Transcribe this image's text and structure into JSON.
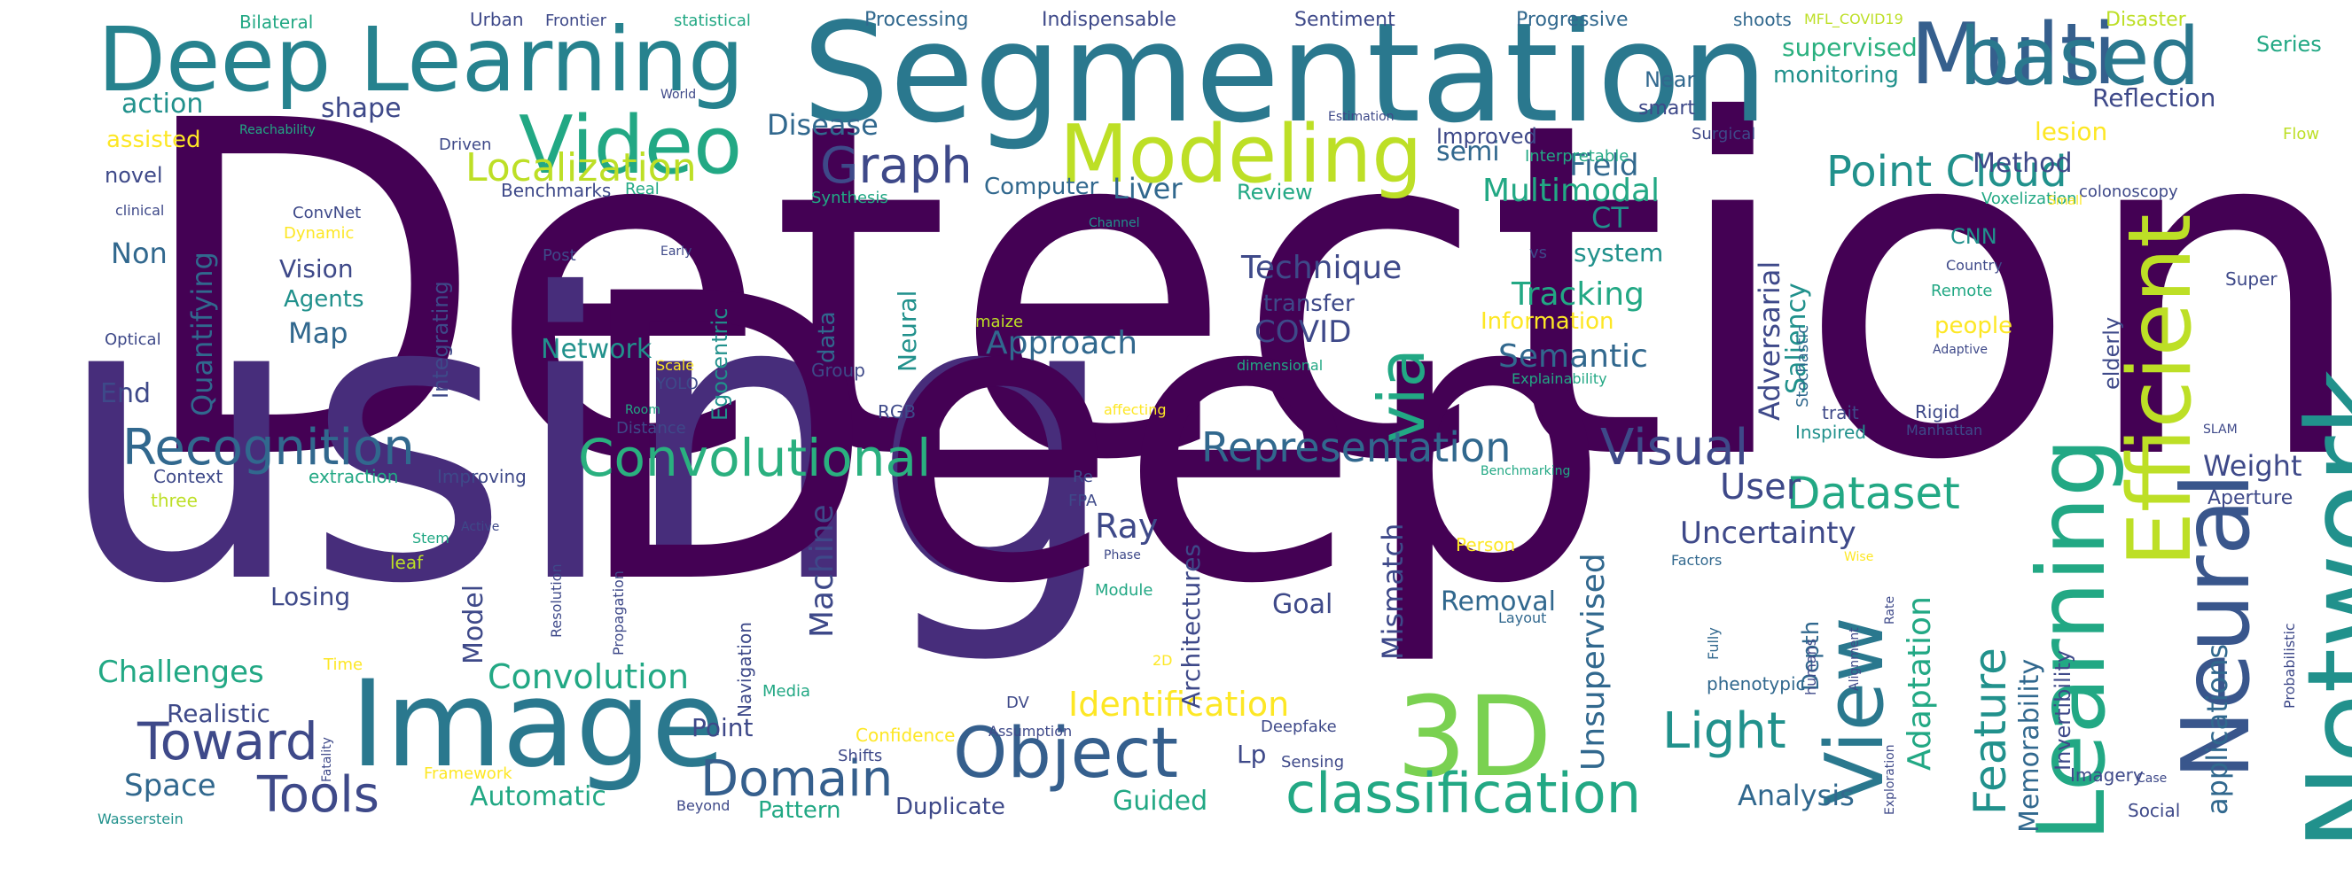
{
  "palette": {
    "dark_purple": "#440154",
    "purple": "#482475",
    "indigo": "#414487",
    "blue": "#355f8d",
    "steel": "#2a788e",
    "teal": "#21918c",
    "sea": "#22a884",
    "green": "#44bf70",
    "lime": "#7ad151",
    "yellowgreen": "#bddf26",
    "yellow": "#fde725"
  },
  "words": [
    "Detection",
    "using",
    "Deep",
    "Segmentation",
    "Deep Learning",
    "Image",
    "Network",
    "Neural",
    "3D",
    "Multi",
    "based",
    "Modeling",
    "Learning",
    "Video",
    "Efficient",
    "View",
    "Object",
    "classification",
    "Convolutional",
    "Recognition",
    "via",
    "Toward",
    "Domain",
    "Tools",
    "Representation",
    "Visual",
    "Light",
    "Dataset",
    "Graph",
    "Point Cloud",
    "Feature",
    "Localization",
    "Adaptation",
    "Identification",
    "Convolution",
    "Unsupervised",
    "User",
    "Tracking",
    "Ray",
    "Technique",
    "Multimodal",
    "Semantic",
    "Uncertainty",
    "Approach",
    "Mismatch",
    "Machine",
    "applications",
    "Challenges",
    "Space",
    "Field",
    "COVID",
    "Weight",
    "Quantifying",
    "Adversarial",
    "Analysis",
    "Liver",
    "CT",
    "Method",
    "Disease",
    "Automatic",
    "Guided",
    "Pattern",
    "Duplicate",
    "Map",
    "Losing",
    "Point",
    "Model",
    "Goal",
    "Removal",
    "Non",
    "End",
    "Vision",
    "Agents",
    "action",
    "shape",
    "Memorability",
    "Saliency",
    "Depth",
    "Invertibility",
    "Realistic",
    "Architectures",
    "Lp",
    "system",
    "semi",
    "supervised",
    "monitoring",
    "Improved",
    "Computer",
    "Review",
    "lesion",
    "Reflection",
    "CNN",
    "people",
    "elderly",
    "Integrating",
    "Egocentric",
    "data",
    "Neural",
    "transfer",
    "Information",
    "Network",
    "Navigation",
    "Series",
    "Near",
    "smart",
    "assisted",
    "novel",
    "Aperture",
    "Sensing",
    "Deepfake",
    "phenotypic",
    "Imagery",
    "Social",
    "Probabilistic",
    "Stochastic",
    "Super",
    "Remote",
    "Country",
    "Adaptive",
    "Rigid",
    "Manhattan",
    "Inspired",
    "trait",
    "Explainability",
    "humans",
    "Alignment",
    "Exploration",
    "Case",
    "Fully",
    "Factors",
    "Layout",
    "Rate",
    "Wise",
    "Person",
    "Module",
    "Phase",
    "Re",
    "FPA",
    "Benchmarking",
    "Stem",
    "Active",
    "Resolution",
    "Propagation",
    "Time",
    "Media",
    "Framework",
    "Fatality",
    "Wasserstein",
    "Beyond",
    "Confidence",
    "Shifts",
    "Assumption",
    "DV",
    "2D",
    "leaf",
    "three",
    "Context",
    "extraction",
    "Improving",
    "Distance",
    "Room",
    "RGB",
    "affecting",
    "YOLO",
    "Scale",
    "dimensional",
    "Group",
    "maize",
    "Optical",
    "Post",
    "Early",
    "Channel",
    "Synthesis",
    "Real",
    "Benchmarks",
    "ConvNet",
    "Dynamic",
    "clinical",
    "Reachability",
    "Driven",
    "World",
    "Estimation",
    "Interpretable",
    "Surgical",
    "Flow",
    "colonoscopy",
    "Voxelization",
    "Small",
    "vs",
    "SLAM",
    "Bilateral",
    "Urban",
    "Frontier",
    "statistical",
    "Processing",
    "Indispensable",
    "Sentiment",
    "Progressive",
    "shoots",
    "MFL_COVID19",
    "Disaster"
  ]
}
